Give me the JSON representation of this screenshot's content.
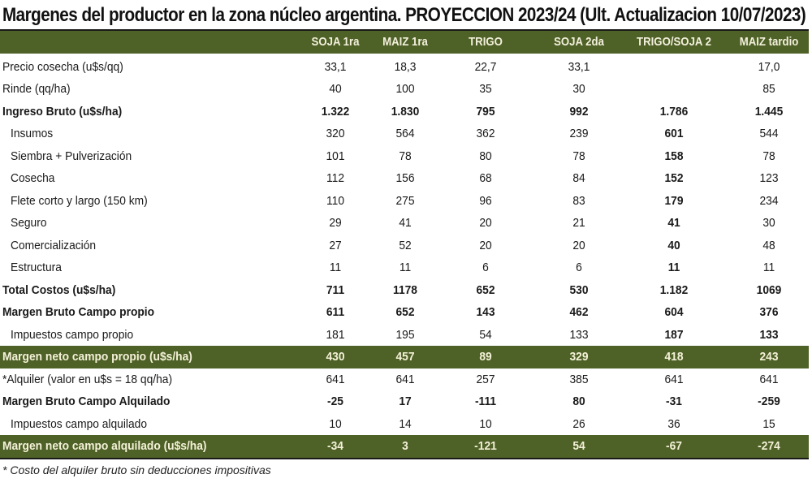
{
  "title": "Margenes del productor en la zona núcleo argentina. PROYECCION 2023/24 (Ult. Actualizacion 10/07/2023)",
  "colors": {
    "header_bg": "#4e6127",
    "header_text": "#f3f0dc"
  },
  "columns": [
    "SOJA 1ra",
    "MAIZ 1ra",
    "TRIGO",
    "SOJA 2da",
    "TRIGO/SOJA 2",
    "MAIZ tardio"
  ],
  "rows": [
    {
      "label": "Precio cosecha (u$s/qq)",
      "style": "normal",
      "values": [
        "33,1",
        "18,3",
        "22,7",
        "33,1",
        "",
        "17,0"
      ]
    },
    {
      "label": "Rinde (qq/ha)",
      "style": "normal",
      "values": [
        "40",
        "100",
        "35",
        "30",
        "",
        "85"
      ]
    },
    {
      "label": "Ingreso Bruto (u$s/ha)",
      "style": "bold",
      "values": [
        "1.322",
        "1.830",
        "795",
        "992",
        "1.786",
        "1.445"
      ]
    },
    {
      "label": "Insumos",
      "style": "indent",
      "values": [
        "320",
        "564",
        "362",
        "239",
        "601",
        "544"
      ]
    },
    {
      "label": "Siembra + Pulverización",
      "style": "indent",
      "values": [
        "101",
        "78",
        "80",
        "78",
        "158",
        "78"
      ]
    },
    {
      "label": "Cosecha",
      "style": "indent",
      "values": [
        "112",
        "156",
        "68",
        "84",
        "152",
        "123"
      ]
    },
    {
      "label": "Flete corto y largo (150 km)",
      "style": "indent",
      "values": [
        "110",
        "275",
        "96",
        "83",
        "179",
        "234"
      ]
    },
    {
      "label": "Seguro",
      "style": "indent",
      "values": [
        "29",
        "41",
        "20",
        "21",
        "41",
        "30"
      ]
    },
    {
      "label": "Comercialización",
      "style": "indent",
      "values": [
        "27",
        "52",
        "20",
        "20",
        "40",
        "48"
      ]
    },
    {
      "label": "Estructura",
      "style": "indent",
      "values": [
        "11",
        "11",
        "6",
        "6",
        "11",
        "11"
      ]
    },
    {
      "label": "Total Costos (u$s/ha)",
      "style": "bold",
      "values": [
        "711",
        "1178",
        "652",
        "530",
        "1.182",
        "1069"
      ]
    },
    {
      "label": "Margen Bruto Campo propio",
      "style": "bold",
      "values": [
        "611",
        "652",
        "143",
        "462",
        "604",
        "376"
      ]
    },
    {
      "label": "Impuestos  campo propio",
      "style": "indent",
      "values": [
        "181",
        "195",
        "54",
        "133",
        "187",
        "133"
      ]
    },
    {
      "label": "Margen neto campo propio (u$s/ha)",
      "style": "green",
      "values": [
        "430",
        "457",
        "89",
        "329",
        "418",
        "243"
      ]
    },
    {
      "label": "*Alquiler (valor en u$s = 18 qq/ha)",
      "style": "normal",
      "values": [
        "641",
        "641",
        "257",
        "385",
        "641",
        "641"
      ]
    },
    {
      "label": "Margen Bruto Campo Alquilado",
      "style": "bold",
      "values": [
        "-25",
        "17",
        "-111",
        "80",
        "-31",
        "-259"
      ]
    },
    {
      "label": "Impuestos campo alquilado",
      "style": "indent",
      "values": [
        "10",
        "14",
        "10",
        "26",
        "36",
        "15"
      ]
    },
    {
      "label": "Margen neto campo alquilado (u$s/ha)",
      "style": "green",
      "values": [
        "-34",
        "3",
        "-121",
        "54",
        "-67",
        "-274"
      ]
    }
  ],
  "bold_cells": {
    "comment": "",
    "rows_with_bold_col5": [
      3,
      4,
      5,
      6,
      7,
      8,
      9,
      12
    ],
    "rows_with_bold_col6": [
      12
    ],
    "rows_with_bold_col2": [
      15
    ]
  },
  "footnote": "* Costo del alquiler bruto sin deducciones impositivas"
}
